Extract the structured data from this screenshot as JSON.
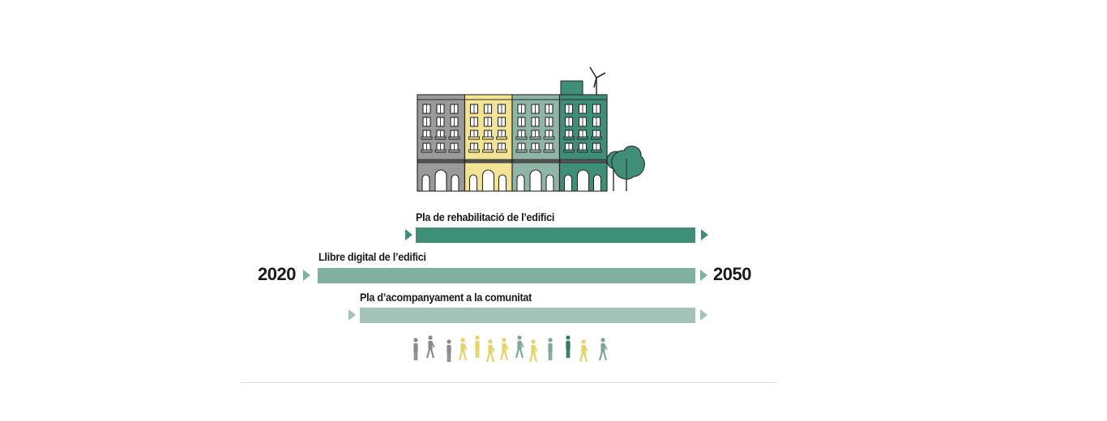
{
  "timeline": {
    "start_year": "2020",
    "end_year": "2050",
    "bars": [
      {
        "label": "Pla de rehabilitació de l’edifici",
        "color": "#3f8e78"
      },
      {
        "label": "Llibre digital de l’edifici",
        "color": "#7fb0a0"
      },
      {
        "label": "Pla d’acompanyament a la comunitat",
        "color": "#a4c3b8"
      }
    ]
  },
  "palette": {
    "grey": "#9a9a9a",
    "yellow": "#f2e494",
    "sage": "#8fb5a7",
    "green": "#3f8e78",
    "dark_green": "#2b7a64",
    "outline": "#2a2a2a"
  },
  "people_colors": [
    "#8a8a8a",
    "#8a8a8a",
    "#8a8a8a",
    "#e2d36b",
    "#e2d36b",
    "#e2d36b",
    "#e2d36b",
    "#7fa798",
    "#e2d36b",
    "#7fa798",
    "#2b7a64",
    "#e2d36b",
    "#7fa798",
    "#2b7a64",
    "#2b7a64",
    "#2b7a64"
  ]
}
